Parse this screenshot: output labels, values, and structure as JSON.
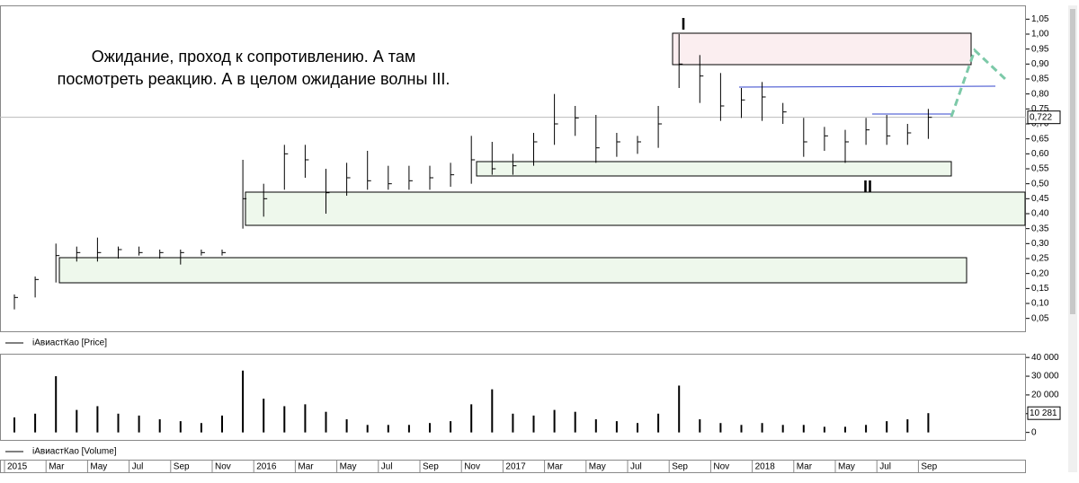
{
  "chart_data": [
    {
      "type": "ohlc",
      "annotation": [
        "Ожидание, проход к сопротивлению. А там",
        "посмотреть реакцию. А в целом ожидание волны III."
      ],
      "wave_labels": [
        "I",
        "II"
      ],
      "legend": "iАвиастКао [Price]",
      "color": "#000000",
      "x": [
        "2015-01",
        "2015-02",
        "2015-03",
        "2015-04",
        "2015-05",
        "2015-06",
        "2015-07",
        "2015-08",
        "2015-09",
        "2015-10",
        "2015-11",
        "2015-12",
        "2016-01",
        "2016-02",
        "2016-03",
        "2016-04",
        "2016-05",
        "2016-06",
        "2016-07",
        "2016-08",
        "2016-09",
        "2016-10",
        "2016-11",
        "2016-12",
        "2017-01",
        "2017-02",
        "2017-03",
        "2017-04",
        "2017-05",
        "2017-06",
        "2017-07",
        "2017-08",
        "2017-09",
        "2017-10",
        "2017-11",
        "2017-12",
        "2018-01",
        "2018-02",
        "2018-03",
        "2018-04",
        "2018-05",
        "2018-06",
        "2018-07",
        "2018-08",
        "2018-09"
      ],
      "high": [
        0.13,
        0.19,
        0.3,
        0.29,
        0.32,
        0.29,
        0.29,
        0.28,
        0.28,
        0.28,
        0.28,
        0.58,
        0.5,
        0.63,
        0.63,
        0.55,
        0.57,
        0.61,
        0.56,
        0.56,
        0.56,
        0.57,
        0.66,
        0.64,
        0.6,
        0.67,
        0.8,
        0.76,
        0.73,
        0.67,
        0.66,
        0.76,
        1.0,
        0.93,
        0.87,
        0.82,
        0.84,
        0.77,
        0.72,
        0.69,
        0.68,
        0.72,
        0.73,
        0.7,
        0.75
      ],
      "low": [
        0.08,
        0.12,
        0.17,
        0.24,
        0.24,
        0.25,
        0.26,
        0.25,
        0.23,
        0.26,
        0.26,
        0.35,
        0.39,
        0.48,
        0.52,
        0.4,
        0.46,
        0.48,
        0.48,
        0.48,
        0.48,
        0.49,
        0.5,
        0.53,
        0.53,
        0.56,
        0.63,
        0.66,
        0.57,
        0.59,
        0.6,
        0.62,
        0.82,
        0.77,
        0.71,
        0.72,
        0.71,
        0.7,
        0.59,
        0.61,
        0.57,
        0.63,
        0.63,
        0.63,
        0.65
      ],
      "values": [
        0.12,
        0.18,
        0.26,
        0.27,
        0.27,
        0.28,
        0.27,
        0.27,
        0.27,
        0.27,
        0.27,
        0.45,
        0.45,
        0.6,
        0.58,
        0.47,
        0.52,
        0.51,
        0.5,
        0.51,
        0.52,
        0.53,
        0.58,
        0.55,
        0.56,
        0.64,
        0.7,
        0.72,
        0.62,
        0.64,
        0.64,
        0.7,
        0.9,
        0.86,
        0.76,
        0.78,
        0.79,
        0.74,
        0.64,
        0.66,
        0.64,
        0.68,
        0.66,
        0.67,
        0.722
      ],
      "current": {
        "value": 0.722,
        "label": "0,722"
      },
      "ylim": [
        0.01,
        1.09
      ],
      "yticks": [
        {
          "value": 0.05,
          "label": "0,05"
        },
        {
          "value": 0.1,
          "label": "0,10"
        },
        {
          "value": 0.15,
          "label": "0,15"
        },
        {
          "value": 0.2,
          "label": "0,20"
        },
        {
          "value": 0.25,
          "label": "0,25"
        },
        {
          "value": 0.3,
          "label": "0,30"
        },
        {
          "value": 0.35,
          "label": "0,35"
        },
        {
          "value": 0.4,
          "label": "0,40"
        },
        {
          "value": 0.45,
          "label": "0,45"
        },
        {
          "value": 0.5,
          "label": "0,50"
        },
        {
          "value": 0.55,
          "label": "0,55"
        },
        {
          "value": 0.6,
          "label": "0,60"
        },
        {
          "value": 0.65,
          "label": "0,65"
        },
        {
          "value": 0.7,
          "label": "0,70"
        },
        {
          "value": 0.75,
          "label": "0,75"
        },
        {
          "value": 0.8,
          "label": "0,80"
        },
        {
          "value": 0.85,
          "label": "0,85"
        },
        {
          "value": 0.9,
          "label": "0,90"
        },
        {
          "value": 0.95,
          "label": "0,95"
        },
        {
          "value": 1.0,
          "label": "1,00"
        },
        {
          "value": 1.05,
          "label": "1,05"
        }
      ]
    },
    {
      "type": "bar",
      "legend": "iАвиастКао [Volume]",
      "color": "#000000",
      "x": [
        "2015-01",
        "2015-02",
        "2015-03",
        "2015-04",
        "2015-05",
        "2015-06",
        "2015-07",
        "2015-08",
        "2015-09",
        "2015-10",
        "2015-11",
        "2015-12",
        "2016-01",
        "2016-02",
        "2016-03",
        "2016-04",
        "2016-05",
        "2016-06",
        "2016-07",
        "2016-08",
        "2016-09",
        "2016-10",
        "2016-11",
        "2016-12",
        "2017-01",
        "2017-02",
        "2017-03",
        "2017-04",
        "2017-05",
        "2017-06",
        "2017-07",
        "2017-08",
        "2017-09",
        "2017-10",
        "2017-11",
        "2017-12",
        "2018-01",
        "2018-02",
        "2018-03",
        "2018-04",
        "2018-05",
        "2018-06",
        "2018-07",
        "2018-08",
        "2018-09"
      ],
      "values": [
        8000,
        10000,
        30000,
        12000,
        14000,
        10000,
        9000,
        7000,
        6000,
        5000,
        9000,
        33000,
        18000,
        14000,
        15000,
        11000,
        7000,
        4000,
        4000,
        4000,
        5000,
        6000,
        15000,
        23000,
        10000,
        9000,
        12000,
        11000,
        7000,
        6000,
        5000,
        10000,
        25000,
        7000,
        5000,
        4000,
        5000,
        4000,
        4000,
        3000,
        3000,
        4000,
        6000,
        7000,
        10281
      ],
      "current": {
        "value": 10281,
        "label": "10 281"
      },
      "ylim": [
        -4000,
        42000
      ],
      "yticks": [
        0,
        {
          "value": 10000,
          "label": "10 000"
        },
        {
          "value": 20000,
          "label": "20 000"
        },
        {
          "value": 30000,
          "label": "30 000"
        },
        {
          "value": 40000,
          "label": "40 000"
        }
      ],
      "xticks": [
        {
          "value": "2015-01",
          "label": "2015"
        },
        {
          "value": "2015-03",
          "label": "Mar"
        },
        {
          "value": "2015-05",
          "label": "May"
        },
        {
          "value": "2015-07",
          "label": "Jul"
        },
        {
          "value": "2015-09",
          "label": "Sep"
        },
        {
          "value": "2015-11",
          "label": "Nov"
        },
        {
          "value": "2016-01",
          "label": "2016"
        },
        {
          "value": "2016-03",
          "label": "Mar"
        },
        {
          "value": "2016-05",
          "label": "May"
        },
        {
          "value": "2016-07",
          "label": "Jul"
        },
        {
          "value": "2016-09",
          "label": "Sep"
        },
        {
          "value": "2016-11",
          "label": "Nov"
        },
        {
          "value": "2017-01",
          "label": "2017"
        },
        {
          "value": "2017-03",
          "label": "Mar"
        },
        {
          "value": "2017-05",
          "label": "May"
        },
        {
          "value": "2017-07",
          "label": "Jul"
        },
        {
          "value": "2017-09",
          "label": "Sep"
        },
        {
          "value": "2017-11",
          "label": "Nov"
        },
        {
          "value": "2018-01",
          "label": "2018"
        },
        {
          "value": "2018-03",
          "label": "Mar"
        },
        {
          "value": "2018-05",
          "label": "May"
        },
        {
          "value": "2018-07",
          "label": "Jul"
        },
        {
          "value": "2018-09",
          "label": "Sep"
        }
      ]
    }
  ]
}
